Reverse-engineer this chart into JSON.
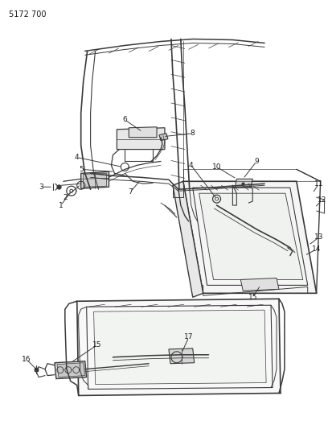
{
  "title_code": "5172 700",
  "background_color": "#ffffff",
  "line_color": "#3a3a3a",
  "text_color": "#1a1a1a",
  "fig_width": 4.08,
  "fig_height": 5.33,
  "dpi": 100
}
